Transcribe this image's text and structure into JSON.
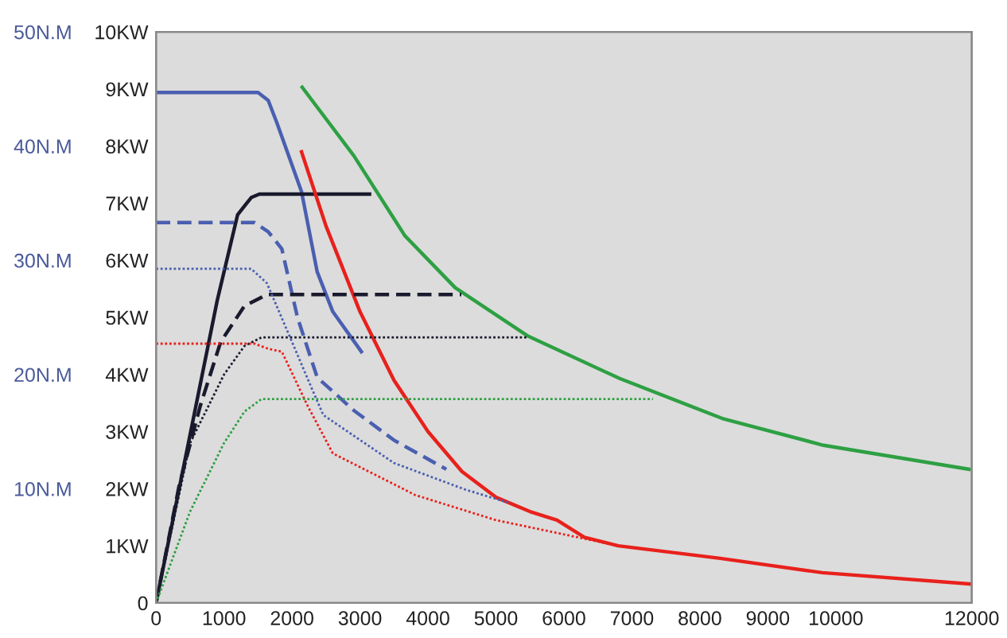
{
  "chart_data": {
    "type": "line",
    "xlim": [
      0,
      12000
    ],
    "xticks": [
      0,
      1000,
      2000,
      3000,
      4000,
      5000,
      6000,
      7000,
      8000,
      9000,
      10000,
      12000
    ],
    "ylim": [
      0,
      10
    ],
    "yticks": [
      0,
      {
        "value": 1,
        "label": "1KW"
      },
      {
        "value": 2,
        "label": "2KW"
      },
      {
        "value": 3,
        "label": "3KW"
      },
      {
        "value": 4,
        "label": "4KW"
      },
      {
        "value": 5,
        "label": "5KW"
      },
      {
        "value": 6,
        "label": "6KW"
      },
      {
        "value": 7,
        "label": "7KW"
      },
      {
        "value": 8,
        "label": "8KW"
      },
      {
        "value": 9,
        "label": "9KW"
      },
      {
        "value": 10,
        "label": "10KW"
      }
    ],
    "y2lim": [
      0,
      50
    ],
    "y2ticks": [
      {
        "value": 10,
        "label": "10N.M"
      },
      {
        "value": 20,
        "label": "20N.M"
      },
      {
        "value": 30,
        "label": "30N.M"
      },
      {
        "value": 40,
        "label": "40N.M"
      },
      {
        "value": 50,
        "label": "50N.M"
      }
    ],
    "grid": false,
    "series": [
      {
        "color": "#4a5fb0",
        "line_style": "solid",
        "x": [
          0,
          1500,
          1650,
          1780,
          2140,
          2370,
          2600,
          3020
        ],
        "values": [
          8.94,
          8.94,
          8.8,
          8.4,
          7.2,
          5.8,
          5.1,
          4.4
        ]
      },
      {
        "color": "#1a1a2e",
        "line_style": "solid",
        "x": [
          0,
          900,
          1200,
          1400,
          1520,
          3140
        ],
        "values": [
          0,
          5.3,
          6.8,
          7.1,
          7.16,
          7.16
        ]
      },
      {
        "color": "#e8211c",
        "line_style": "solid",
        "x": [
          2140,
          2500,
          3000,
          3500,
          4000,
          4500,
          5000,
          5500,
          5900,
          6300,
          6800,
          8300,
          9800,
          12000
        ],
        "values": [
          7.9,
          6.6,
          5.1,
          3.9,
          3.0,
          2.3,
          1.85,
          1.6,
          1.45,
          1.15,
          1.0,
          0.78,
          0.53,
          0.33
        ]
      },
      {
        "color": "#2ea043",
        "line_style": "solid",
        "x": [
          2150,
          2910,
          3660,
          4400,
          5460,
          6820,
          8330,
          9820,
          11960
        ],
        "values": [
          9.03,
          7.83,
          6.43,
          5.52,
          4.68,
          3.93,
          3.23,
          2.76,
          2.34
        ]
      },
      {
        "color": "#4a5fb0",
        "line_style": "dashed",
        "x": [
          0,
          1450,
          1650,
          1850,
          2080,
          2370,
          2910,
          3500,
          4270
        ],
        "values": [
          6.66,
          6.66,
          6.5,
          6.2,
          5.0,
          3.95,
          3.37,
          2.85,
          2.34
        ]
      },
      {
        "color": "#1a1a2e",
        "line_style": "dashed",
        "x": [
          0,
          340,
          650,
          950,
          1300,
          1630,
          4490
        ],
        "values": [
          0,
          2.06,
          3.45,
          4.57,
          5.2,
          5.4,
          5.4
        ]
      },
      {
        "color": "#4a5fb0",
        "line_style": "dotted",
        "x": [
          0,
          1400,
          1630,
          2000,
          2300,
          2460,
          3500,
          4560,
          5200
        ],
        "values": [
          5.85,
          5.85,
          5.6,
          4.57,
          3.73,
          3.29,
          2.45,
          1.98,
          1.75
        ]
      },
      {
        "color": "#1a1a2e",
        "line_style": "dotted",
        "x": [
          0,
          500,
          1000,
          1300,
          1550,
          5460
        ],
        "values": [
          0,
          2.8,
          4.0,
          4.5,
          4.65,
          4.65
        ]
      },
      {
        "color": "#e8211c",
        "line_style": "dotted",
        "x": [
          0,
          1450,
          1650,
          1850,
          2230,
          2600,
          3810,
          5000,
          6000,
          6800
        ],
        "values": [
          4.54,
          4.54,
          4.45,
          4.4,
          3.45,
          2.62,
          1.89,
          1.45,
          1.2,
          1.0
        ]
      },
      {
        "color": "#2ea043",
        "line_style": "dotted",
        "x": [
          0,
          500,
          1000,
          1300,
          1550,
          7310
        ],
        "values": [
          0,
          1.6,
          2.8,
          3.35,
          3.57,
          3.57
        ]
      }
    ]
  }
}
